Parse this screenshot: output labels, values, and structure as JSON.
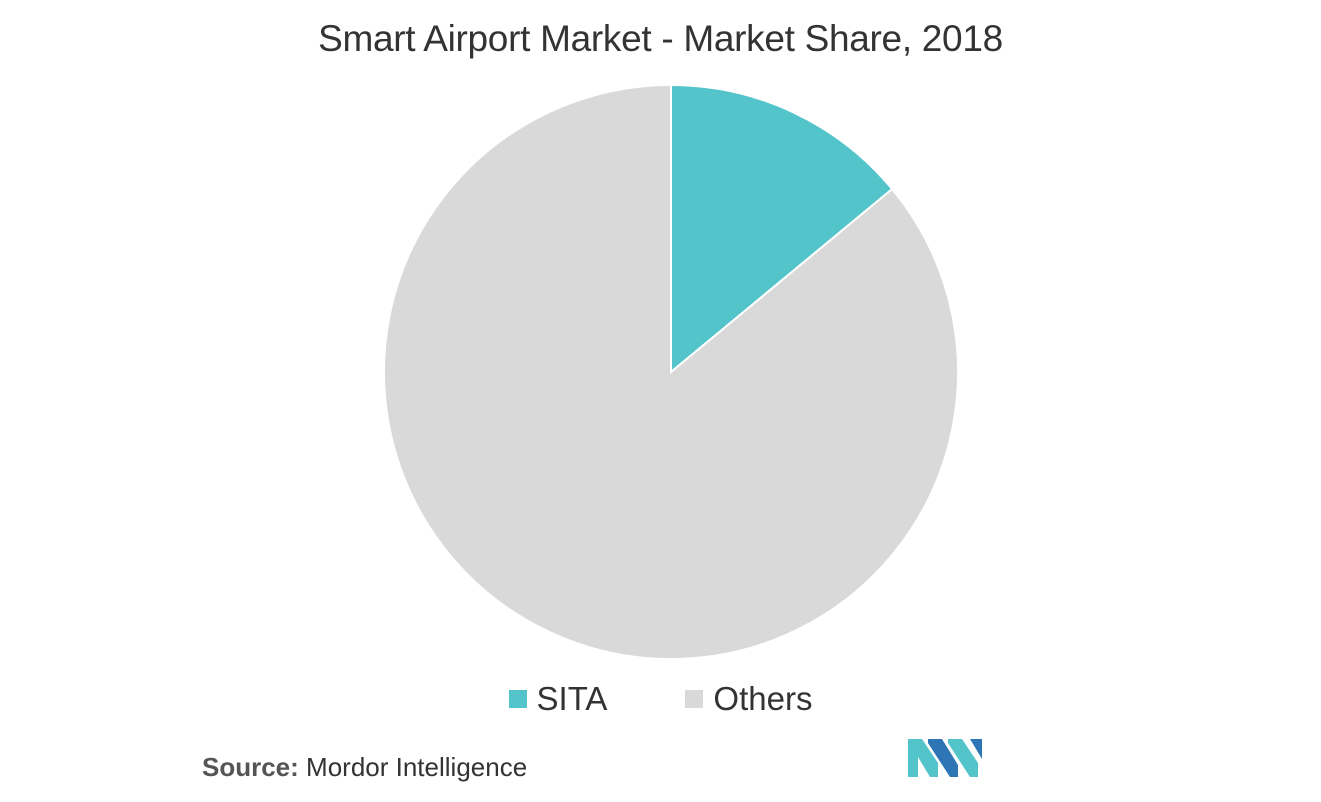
{
  "chart_data": {
    "type": "pie",
    "title": "Smart Airport Market - Market Share, 2018",
    "slices": [
      {
        "label": "SITA",
        "value": 14,
        "color": "#52C4CA"
      },
      {
        "label": "Others",
        "value": 86,
        "color": "#D9D9D9"
      }
    ],
    "legend_position": "bottom",
    "start_angle": "12 o'clock, clockwise"
  },
  "legend": {
    "items": [
      {
        "label": "SITA",
        "color": "#52C4CA"
      },
      {
        "label": "Others",
        "color": "#D9D9D9"
      }
    ]
  },
  "source": {
    "label": "Source:",
    "text": "Mordor Intelligence"
  },
  "logo": {
    "icon": "mordor-intelligence-logo",
    "colors": [
      "#52C4CA",
      "#2E75B6"
    ]
  }
}
